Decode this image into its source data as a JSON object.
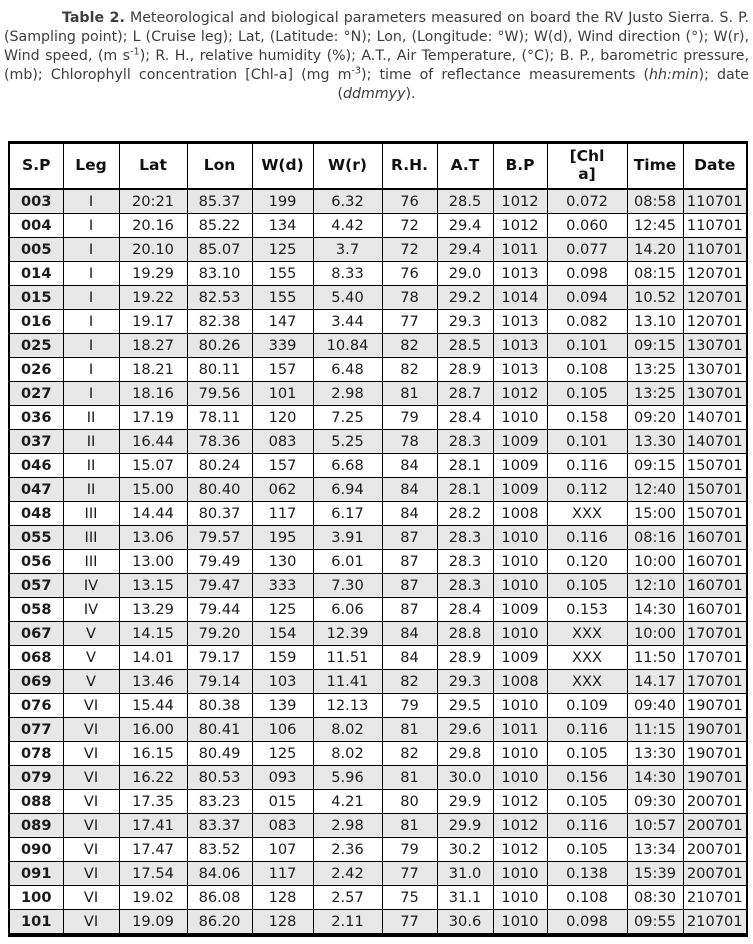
{
  "caption": {
    "segments": [
      {
        "text": "Table 2.",
        "bold": true
      },
      {
        "text": " Meteorological and biological parameters measured on board the RV Justo Sierra. S. P. (Sampling point); L (Cruise leg); Lat, (Latitude: °N); Lon, (Longitude: °W); W(d), Wind direction (°); W(r), Wind speed, (m s"
      },
      {
        "text": "-1",
        "sup": true
      },
      {
        "text": "); R. H., relative humidity (%); A.T., Air Temperature, (°C); B. P., barometric pressure, (mb); Chlorophyll concentration [Chl-a] (mg m"
      },
      {
        "text": "-3",
        "sup": true
      },
      {
        "text": "); time of reflectance measurements ("
      },
      {
        "text": "hh:min",
        "italic": true
      },
      {
        "text": "); date ("
      },
      {
        "text": "ddmmyy",
        "italic": true
      },
      {
        "text": ")."
      }
    ]
  },
  "table": {
    "column_keys": [
      "sp",
      "leg",
      "lat",
      "lon",
      "wd",
      "wr",
      "rh",
      "at",
      "bp",
      "chla",
      "time",
      "date"
    ],
    "headers": [
      "S.P",
      "Leg",
      "Lat",
      "Lon",
      "W(d)",
      "W(r)",
      "R.H.",
      "A.T",
      "B.P",
      "[Chl\na]",
      "Time",
      "Date"
    ],
    "rows": [
      [
        "003",
        "I",
        "20:21",
        "85.37",
        "199",
        "6.32",
        "76",
        "28.5",
        "1012",
        "0.072",
        "08:58",
        "110701"
      ],
      [
        "004",
        "I",
        "20.16",
        "85.22",
        "134",
        "4.42",
        "72",
        "29.4",
        "1012",
        "0.060",
        "12:45",
        "110701"
      ],
      [
        "005",
        "I",
        "20.10",
        "85.07",
        "125",
        "3.7",
        "72",
        "29.4",
        "1011",
        "0.077",
        "14.20",
        "110701"
      ],
      [
        "014",
        "I",
        "19.29",
        "83.10",
        "155",
        "8.33",
        "76",
        "29.0",
        "1013",
        "0.098",
        "08:15",
        "120701"
      ],
      [
        "015",
        "I",
        "19.22",
        "82.53",
        "155",
        "5.40",
        "78",
        "29.2",
        "1014",
        "0.094",
        "10.52",
        "120701"
      ],
      [
        "016",
        "I",
        "19.17",
        "82.38",
        "147",
        "3.44",
        "77",
        "29.3",
        "1013",
        "0.082",
        "13.10",
        "120701"
      ],
      [
        "025",
        "I",
        "18.27",
        "80.26",
        "339",
        "10.84",
        "82",
        "28.5",
        "1013",
        "0.101",
        "09:15",
        "130701"
      ],
      [
        "026",
        "I",
        "18.21",
        "80.11",
        "157",
        "6.48",
        "82",
        "28.9",
        "1013",
        "0.108",
        "13:25",
        "130701"
      ],
      [
        "027",
        "I",
        "18.16",
        "79.56",
        "101",
        "2.98",
        "81",
        "28.7",
        "1012",
        "0.105",
        "13:25",
        "130701"
      ],
      [
        "036",
        "II",
        "17.19",
        "78.11",
        "120",
        "7.25",
        "79",
        "28.4",
        "1010",
        "0.158",
        "09:20",
        "140701"
      ],
      [
        "037",
        "II",
        "16.44",
        "78.36",
        "083",
        "5.25",
        "78",
        "28.3",
        "1009",
        "0.101",
        "13.30",
        "140701"
      ],
      [
        "046",
        "II",
        "15.07",
        "80.24",
        "157",
        "6.68",
        "84",
        "28.1",
        "1009",
        "0.116",
        "09:15",
        "150701"
      ],
      [
        "047",
        "II",
        "15.00",
        "80.40",
        "062",
        "6.94",
        "84",
        "28.1",
        "1009",
        "0.112",
        "12:40",
        "150701"
      ],
      [
        "048",
        "III",
        "14.44",
        "80.37",
        "117",
        "6.17",
        "84",
        "28.2",
        "1008",
        "XXX",
        "15:00",
        "150701"
      ],
      [
        "055",
        "III",
        "13.06",
        "79.57",
        "195",
        "3.91",
        "87",
        "28.3",
        "1010",
        "0.116",
        "08:16",
        "160701"
      ],
      [
        "056",
        "III",
        "13.00",
        "79.49",
        "130",
        "6.01",
        "87",
        "28.3",
        "1010",
        "0.120",
        "10:00",
        "160701"
      ],
      [
        "057",
        "IV",
        "13.15",
        "79.47",
        "333",
        "7.30",
        "87",
        "28.3",
        "1010",
        "0.105",
        "12:10",
        "160701"
      ],
      [
        "058",
        "IV",
        "13.29",
        "79.44",
        "125",
        "6.06",
        "87",
        "28.4",
        "1009",
        "0.153",
        "14:30",
        "160701"
      ],
      [
        "067",
        "V",
        "14.15",
        "79.20",
        "154",
        "12.39",
        "84",
        "28.8",
        "1010",
        "XXX",
        "10:00",
        "170701"
      ],
      [
        "068",
        "V",
        "14.01",
        "79.17",
        "159",
        "11.51",
        "84",
        "28.9",
        "1009",
        "XXX",
        "11:50",
        "170701"
      ],
      [
        "069",
        "V",
        "13.46",
        "79.14",
        "103",
        "11.41",
        "82",
        "29.3",
        "1008",
        "XXX",
        "14.17",
        "170701"
      ],
      [
        "076",
        "VI",
        "15.44",
        "80.38",
        "139",
        "12.13",
        "79",
        "29.5",
        "1010",
        "0.109",
        "09:40",
        "190701"
      ],
      [
        "077",
        "VI",
        "16.00",
        "80.41",
        "106",
        "8.02",
        "81",
        "29.6",
        "1011",
        "0.116",
        "11:15",
        "190701"
      ],
      [
        "078",
        "VI",
        "16.15",
        "80.49",
        "125",
        "8.02",
        "82",
        "29.8",
        "1010",
        "0.105",
        "13:30",
        "190701"
      ],
      [
        "079",
        "VI",
        "16.22",
        "80.53",
        "093",
        "5.96",
        "81",
        "30.0",
        "1010",
        "0.156",
        "14:30",
        "190701"
      ],
      [
        "088",
        "VI",
        "17.35",
        "83.23",
        "015",
        "4.21",
        "80",
        "29.9",
        "1012",
        "0.105",
        "09:30",
        "200701"
      ],
      [
        "089",
        "VI",
        "17.41",
        "83.37",
        "083",
        "2.98",
        "81",
        "29.9",
        "1012",
        "0.116",
        "10:57",
        "200701"
      ],
      [
        "090",
        "VI",
        "17.47",
        "83.52",
        "107",
        "2.36",
        "79",
        "30.2",
        "1012",
        "0.105",
        "13:34",
        "200701"
      ],
      [
        "091",
        "VI",
        "17.54",
        "84.06",
        "117",
        "2.42",
        "77",
        "31.0",
        "1010",
        "0.138",
        "15:39",
        "200701"
      ],
      [
        "100",
        "VI",
        "19.02",
        "86.08",
        "128",
        "2.57",
        "75",
        "31.1",
        "1010",
        "0.108",
        "08:30",
        "210701"
      ],
      [
        "101",
        "VI",
        "19.09",
        "86.20",
        "128",
        "2.11",
        "77",
        "30.6",
        "1010",
        "0.098",
        "09:55",
        "210701"
      ]
    ]
  },
  "colors": {
    "stripe": "#e7e7e7",
    "border": "#000000",
    "table_text": "#1b1b1b",
    "caption_text": "#3d3d3d"
  }
}
